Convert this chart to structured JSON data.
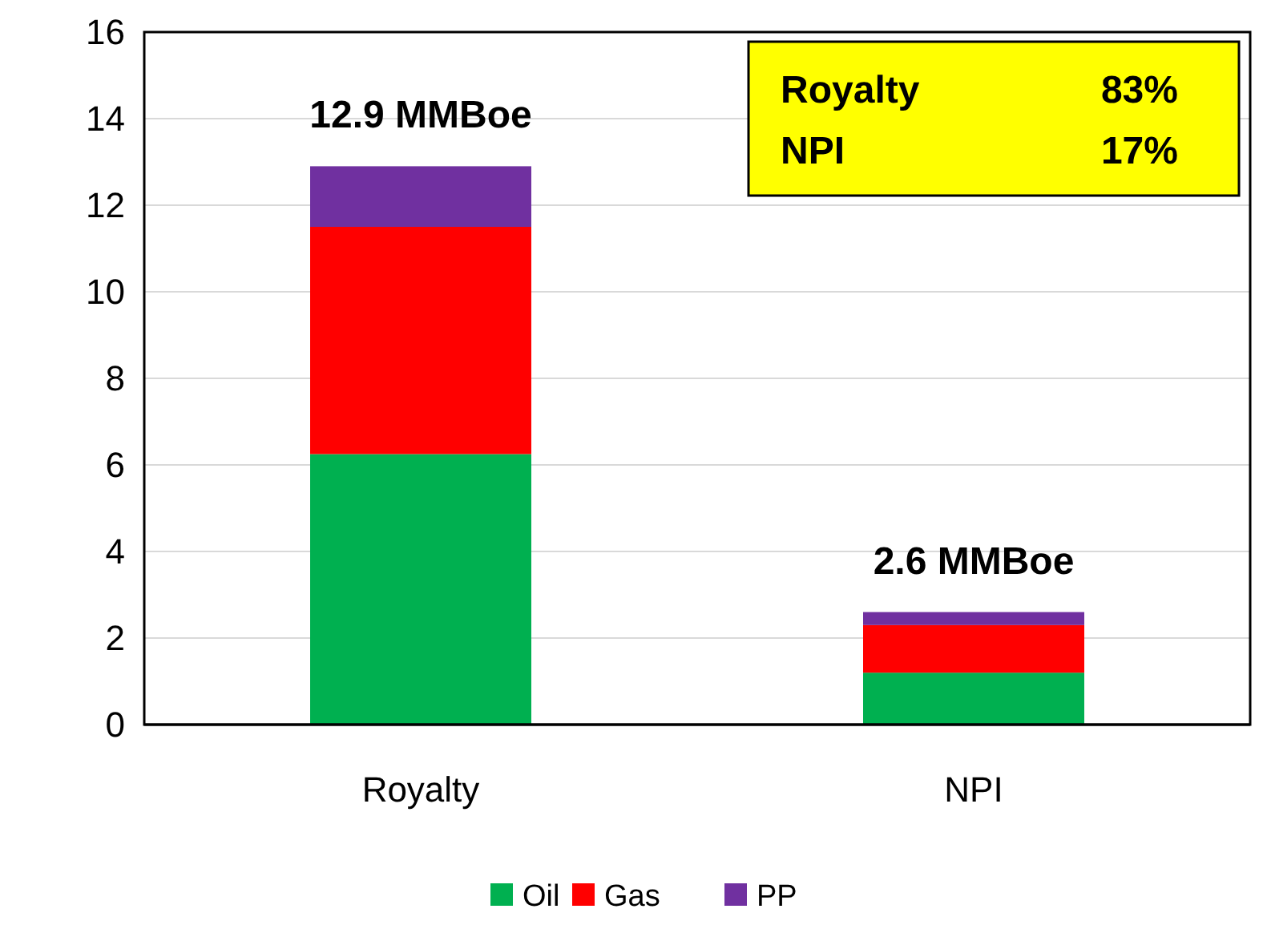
{
  "chart_data": {
    "type": "bar",
    "stacked": true,
    "categories": [
      "Royalty",
      "NPI"
    ],
    "series": [
      {
        "name": "Oil",
        "color": "#00b050",
        "values": [
          6.25,
          1.2
        ]
      },
      {
        "name": "Gas",
        "color": "#ff0000",
        "values": [
          5.25,
          1.1
        ]
      },
      {
        "name": "PP",
        "color": "#7030a0",
        "values": [
          1.4,
          0.3
        ]
      }
    ],
    "totals": [
      "12.9 MMBoe",
      "2.6 MMBoe"
    ],
    "annotations": [
      "Royalty 83%",
      "NPI 17%"
    ],
    "ylim": [
      0,
      16
    ],
    "yticks": [
      0,
      2,
      4,
      6,
      8,
      10,
      12,
      14,
      16
    ],
    "grid": "y",
    "legend": "bottom"
  }
}
